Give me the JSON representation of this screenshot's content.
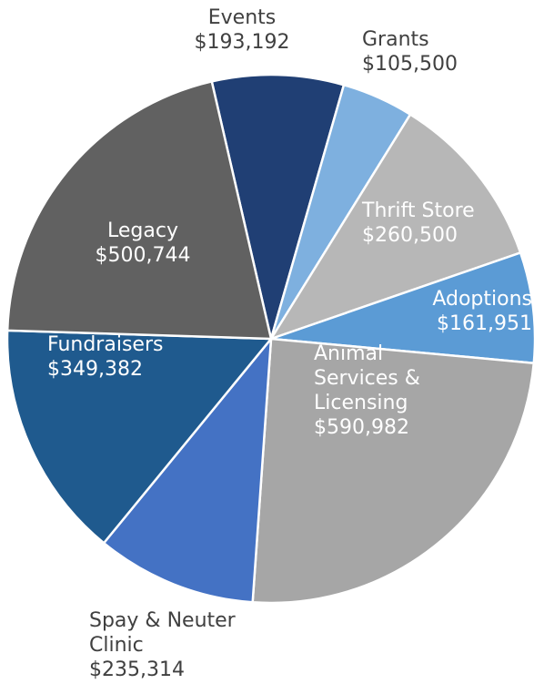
{
  "chart_data": {
    "type": "pie",
    "categories": [
      "Events",
      "Grants",
      "Thrift Store",
      "Adoptions",
      "Animal Services & Licensing",
      "Spay & Neuter Clinic",
      "Fundraisers",
      "Legacy"
    ],
    "values": [
      193192,
      105500,
      260500,
      161951,
      590982,
      235314,
      349382,
      500744
    ],
    "value_labels": [
      "$193,192",
      "$105,500",
      "$260,500",
      "$161,951",
      "$590,982",
      "$235,314",
      "$349,382",
      "$500,744"
    ],
    "colors": [
      "#203f74",
      "#7eb0df",
      "#b7b7b7",
      "#5b9bd5",
      "#a6a6a6",
      "#4472c4",
      "#1f5a8e",
      "#616161"
    ]
  }
}
